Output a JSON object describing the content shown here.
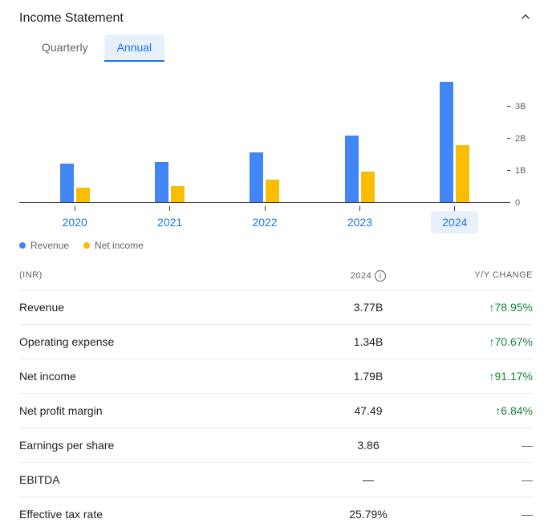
{
  "header": {
    "title": "Income Statement"
  },
  "tabs": [
    {
      "label": "Quarterly",
      "active": false
    },
    {
      "label": "Annual",
      "active": true
    }
  ],
  "chart": {
    "type": "bar",
    "ylim_max": 4,
    "y_ticks": [
      {
        "label": "3B",
        "value": 3
      },
      {
        "label": "2B",
        "value": 2
      },
      {
        "label": "1B",
        "value": 1
      },
      {
        "label": "0",
        "value": 0
      }
    ],
    "categories": [
      {
        "label": "2020",
        "selected": false
      },
      {
        "label": "2021",
        "selected": false
      },
      {
        "label": "2022",
        "selected": false
      },
      {
        "label": "2023",
        "selected": false
      },
      {
        "label": "2024",
        "selected": true
      }
    ],
    "series": [
      {
        "name": "Revenue",
        "color": "#4285f4",
        "values": [
          1.2,
          1.25,
          1.55,
          2.1,
          3.77
        ]
      },
      {
        "name": "Net income",
        "color": "#fbbc04",
        "values": [
          0.45,
          0.5,
          0.7,
          0.95,
          1.79
        ]
      }
    ],
    "axis_color": "#3c4043",
    "background_color": "#ffffff"
  },
  "legend": [
    {
      "label": "Revenue",
      "color": "#4285f4"
    },
    {
      "label": "Net income",
      "color": "#fbbc04"
    }
  ],
  "table": {
    "currency_label": "(INR)",
    "value_col_label": "2024",
    "change_col_label": "Y/Y CHANGE",
    "rows": [
      {
        "metric": "Revenue",
        "value": "3.77B",
        "change": "78.95%",
        "direction": "up"
      },
      {
        "metric": "Operating expense",
        "value": "1.34B",
        "change": "70.67%",
        "direction": "up"
      },
      {
        "metric": "Net income",
        "value": "1.79B",
        "change": "91.17%",
        "direction": "up"
      },
      {
        "metric": "Net profit margin",
        "value": "47.49",
        "change": "6.84%",
        "direction": "up"
      },
      {
        "metric": "Earnings per share",
        "value": "3.86",
        "change": "—",
        "direction": "none"
      },
      {
        "metric": "EBITDA",
        "value": "—",
        "change": "—",
        "direction": "none"
      },
      {
        "metric": "Effective tax rate",
        "value": "25.79%",
        "change": "—",
        "direction": "none"
      }
    ]
  },
  "colors": {
    "link": "#1a73e8",
    "positive": "#188038",
    "muted": "#5f6368",
    "border": "#e8eaed"
  }
}
